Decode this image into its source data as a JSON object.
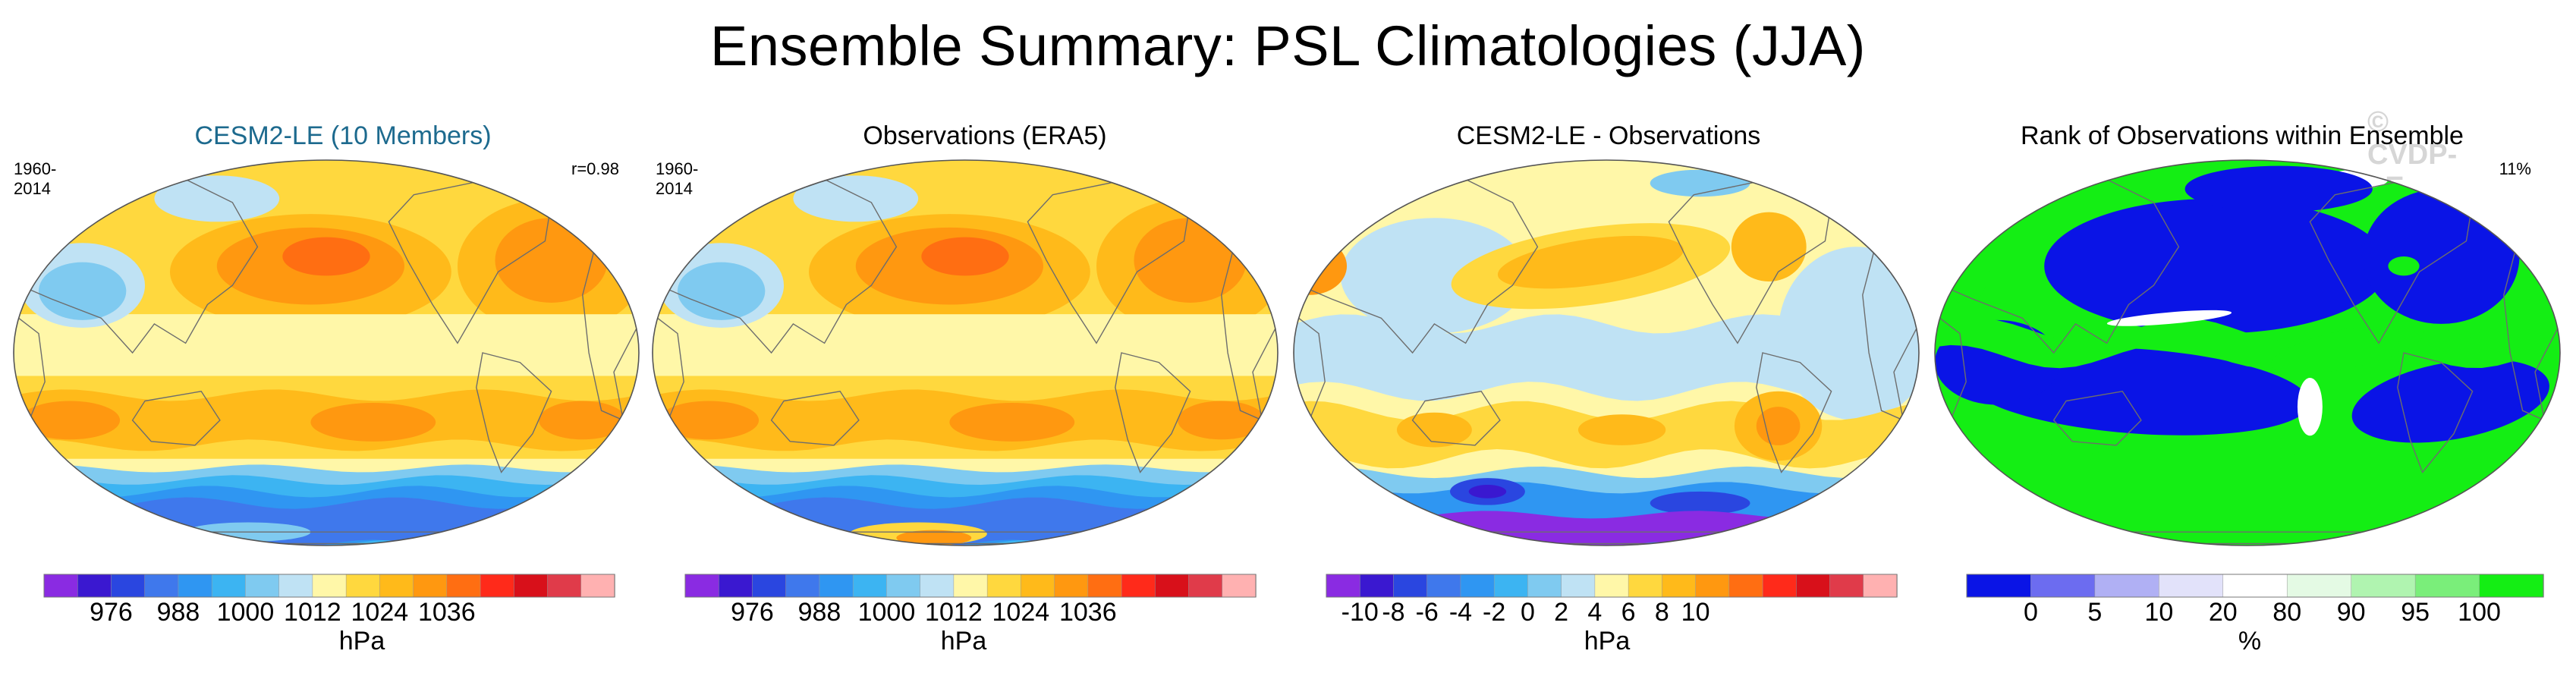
{
  "title": "Ensemble Summary: PSL Climatologies (JJA)",
  "watermark": "© CVDP-LE",
  "colors": {
    "land_outline": "#6d6d6d",
    "map_border": "#555555"
  },
  "panels": [
    {
      "id": "p1",
      "title": "CESM2-LE (10 Members)",
      "title_color": "#1d6a8e",
      "left_label": "1960-2014",
      "right_label": "r=0.98",
      "units": "hPa",
      "palette": [
        "#8a2be2",
        "#3a18d0",
        "#2a46e0",
        "#3f78ec",
        "#2f96f2",
        "#3cb4f2",
        "#7fcaf0",
        "#bfe2f4",
        "#fff7a8",
        "#ffd83e",
        "#ffba1a",
        "#ff9810",
        "#ff6e12",
        "#ff2a1a",
        "#d8101a",
        "#e03b4a",
        "#ffb1b1"
      ],
      "tick_labels": [
        "976",
        "988",
        "1000",
        "1012",
        "1024",
        "1036"
      ],
      "tick_positions": [
        2,
        4,
        6,
        8,
        10,
        12
      ],
      "map_type": "psl"
    },
    {
      "id": "p2",
      "title": "Observations (ERA5)",
      "title_color": "#000000",
      "left_label": "1960-2014",
      "right_label": "",
      "units": "hPa",
      "palette": [
        "#8a2be2",
        "#3a18d0",
        "#2a46e0",
        "#3f78ec",
        "#2f96f2",
        "#3cb4f2",
        "#7fcaf0",
        "#bfe2f4",
        "#fff7a8",
        "#ffd83e",
        "#ffba1a",
        "#ff9810",
        "#ff6e12",
        "#ff2a1a",
        "#d8101a",
        "#e03b4a",
        "#ffb1b1"
      ],
      "tick_labels": [
        "976",
        "988",
        "1000",
        "1012",
        "1024",
        "1036"
      ],
      "tick_positions": [
        2,
        4,
        6,
        8,
        10,
        12
      ],
      "map_type": "psl_obs"
    },
    {
      "id": "p3",
      "title": "CESM2-LE - Observations",
      "title_color": "#000000",
      "left_label": "",
      "right_label": "",
      "units": "hPa",
      "palette": [
        "#8a2be2",
        "#3a18d0",
        "#2a46e0",
        "#3f78ec",
        "#2f96f2",
        "#3cb4f2",
        "#7fcaf0",
        "#bfe2f4",
        "#fff7a8",
        "#ffd83e",
        "#ffba1a",
        "#ff9810",
        "#ff6e12",
        "#ff2a1a",
        "#d8101a",
        "#e03b4a",
        "#ffb1b1"
      ],
      "tick_labels": [
        "-10",
        "-8",
        "-6",
        "-4",
        "-2",
        "0",
        "2",
        "4",
        "6",
        "8",
        "10"
      ],
      "tick_positions": [
        1,
        2,
        3,
        4,
        5,
        6,
        7,
        8,
        9,
        10,
        11
      ],
      "map_type": "diff"
    },
    {
      "id": "p4",
      "title": "Rank of Observations within Ensemble",
      "title_color": "#000000",
      "left_label": "",
      "right_label": "11%",
      "units": "%",
      "palette": [
        "#0a14e6",
        "#6c6cf0",
        "#b0b0f4",
        "#e2e2fa",
        "#ffffff",
        "#e4fae4",
        "#b0f4b0",
        "#7aee7a",
        "#14ee14"
      ],
      "tick_labels": [
        "0",
        "5",
        "10",
        "20",
        "80",
        "90",
        "95",
        "100"
      ],
      "tick_positions": [
        1,
        2,
        3,
        4,
        5,
        6,
        7,
        8
      ],
      "map_type": "rank"
    }
  ],
  "chart_data": [
    {
      "type": "heatmap",
      "title": "CESM2-LE (10 Members)",
      "period": "1960-2014",
      "pattern_correlation": 0.98,
      "units": "hPa",
      "colorbar_ticks": [
        976,
        988,
        1000,
        1012,
        1024,
        1036
      ],
      "features": "subtropical highs ~1024 hPa in N. Pacific and N. Atlantic; belt of ~1024 hPa highs near 30S; low pressure (<990 hPa) around Antarctica; ~1000 hPa over S/E Asia"
    },
    {
      "type": "heatmap",
      "title": "Observations (ERA5)",
      "period": "1960-2014",
      "units": "hPa",
      "colorbar_ticks": [
        976,
        988,
        1000,
        1012,
        1024,
        1036
      ]
    },
    {
      "type": "heatmap",
      "title": "CESM2-LE - Observations",
      "units": "hPa",
      "colorbar_ticks": [
        -10,
        -8,
        -6,
        -4,
        -2,
        0,
        2,
        4,
        6,
        8,
        10
      ],
      "features": "positive bias over N. Pacific/Atlantic highs and S. hemisphere subtropics; strong negative bias (< -8) over Southern Ocean / Antarctica"
    },
    {
      "type": "heatmap",
      "title": "Rank of Observations within Ensemble",
      "units": "%",
      "summary_value": "11%",
      "colorbar_ticks": [
        0,
        5,
        10,
        20,
        80,
        90,
        95,
        100
      ]
    }
  ]
}
